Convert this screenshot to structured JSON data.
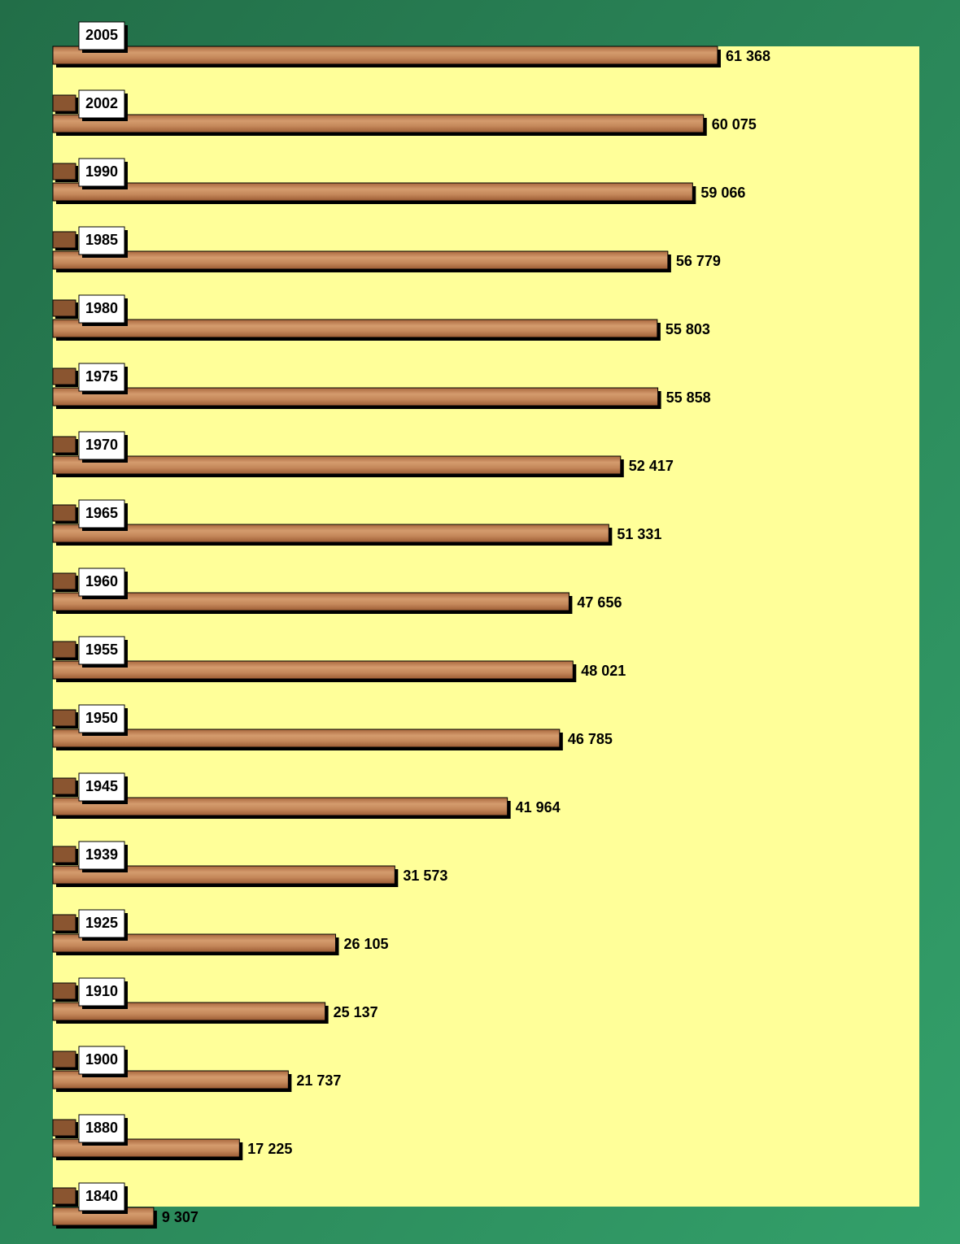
{
  "chart_data": {
    "type": "barh",
    "categories": [
      "2005",
      "2002",
      "1990",
      "1985",
      "1980",
      "1975",
      "1970",
      "1965",
      "1960",
      "1955",
      "1950",
      "1945",
      "1939",
      "1925",
      "1910",
      "1900",
      "1880",
      "1840"
    ],
    "values": [
      61368,
      60075,
      59066,
      56779,
      55803,
      55858,
      52417,
      51331,
      47656,
      48021,
      46785,
      41964,
      31573,
      26105,
      25137,
      21737,
      17225,
      9307
    ],
    "value_labels": [
      "61 368",
      "60 075",
      "59 066",
      "56 779",
      "55 803",
      "55 858",
      "52 417",
      "51 331",
      "47 656",
      "48 021",
      "46 785",
      "41 964",
      "31 573",
      "26 105",
      "25 137",
      "21 737",
      "17 225",
      "9 307"
    ],
    "color": "#c48552",
    "xlim": [
      0,
      80000
    ]
  }
}
